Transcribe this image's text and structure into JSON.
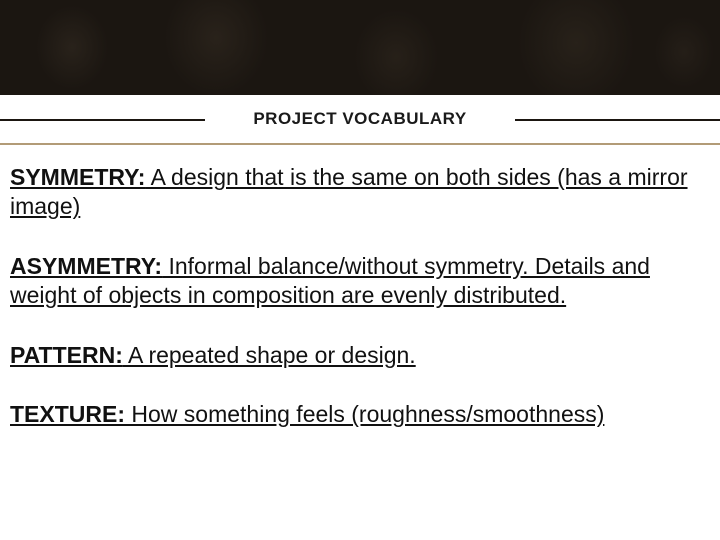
{
  "slide": {
    "title": "PROJECT VOCABULARY",
    "header_band_color": "#1b1611",
    "accent_line_color": "#b29b77",
    "divider_color": "#1b1611",
    "background_color": "#ffffff",
    "text_color": "#111111",
    "title_fontsize": 17,
    "body_fontsize": 23,
    "entries": [
      {
        "term": "SYMMETRY:",
        "definition": " A design that is the same on both sides (has a mirror image)"
      },
      {
        "term": "ASYMMETRY:",
        "definition": " Informal balance/without symmetry. Details and weight of objects in composition are evenly distributed."
      },
      {
        "term": "PATTERN:",
        "definition": " A repeated shape or design."
      },
      {
        "term": "TEXTURE:",
        "definition": " How something feels (roughness/smoothness)"
      }
    ]
  }
}
